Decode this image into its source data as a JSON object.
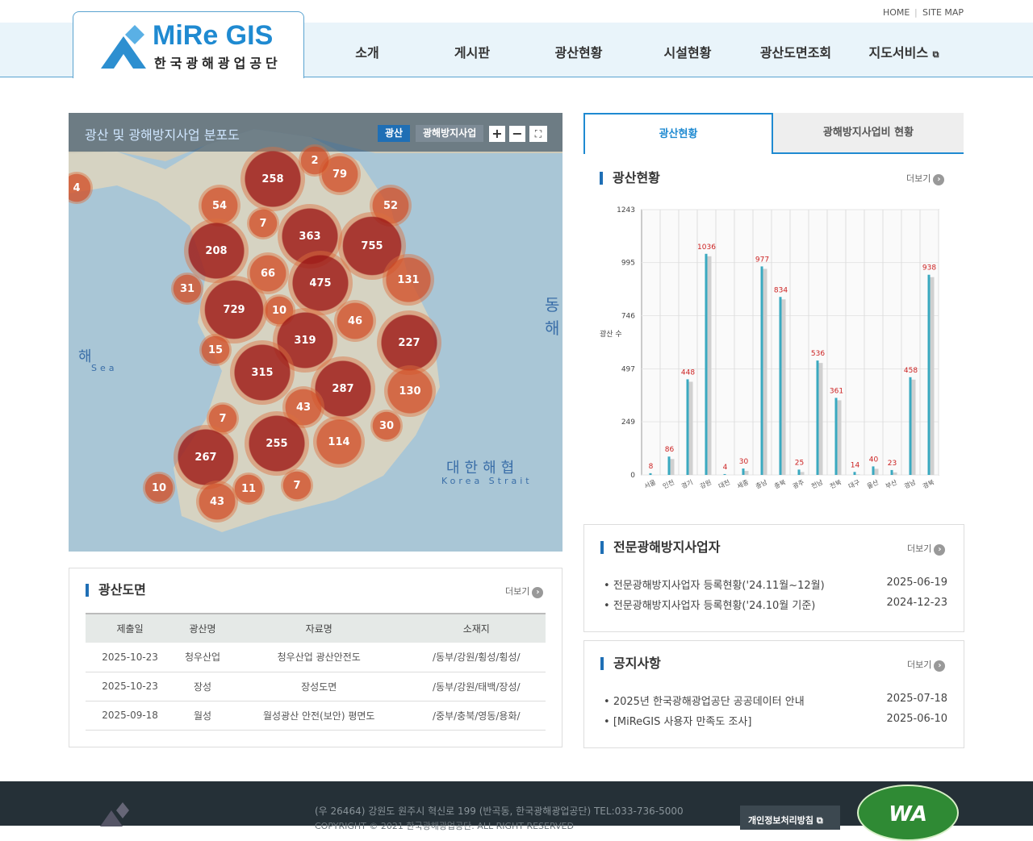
{
  "header": {
    "utility": [
      "HOME",
      "SITE MAP"
    ],
    "logo_text": "MiRe GIS",
    "logo_sub": "한국광해광업공단",
    "nav": [
      "소개",
      "게시판",
      "광산현황",
      "시설현황",
      "광산도면조회",
      "지도서비스"
    ]
  },
  "map": {
    "title": "광산 및 광해방지사업 분포도",
    "buttons": [
      "광산",
      "광해방지사업"
    ],
    "zoom_in": "+",
    "zoom_out": "−",
    "sea_labels": [
      "동해",
      "대한해협",
      "Korea Strait",
      "해",
      "Sea"
    ],
    "clusters": [
      258,
      79,
      2,
      4,
      54,
      7,
      52,
      363,
      755,
      208,
      66,
      475,
      131,
      31,
      729,
      10,
      46,
      319,
      227,
      15,
      315,
      287,
      130,
      43,
      7,
      30,
      255,
      114,
      267,
      10,
      11,
      7,
      43
    ],
    "cluster_color": "#b22a1e"
  },
  "tabs": [
    "광산현황",
    "광해방지사업비 현황"
  ],
  "mines": {
    "title": "광산현황",
    "more": "더보기",
    "chart_data": {
      "type": "bar",
      "categories": [
        "서울",
        "인천",
        "경기",
        "강원",
        "대전",
        "세종",
        "충남",
        "충북",
        "광주",
        "전남",
        "전북",
        "대구",
        "울산",
        "부산",
        "경남",
        "경북"
      ],
      "values": [
        8,
        86,
        448,
        1036,
        4,
        30,
        977,
        834,
        25,
        536,
        361,
        14,
        40,
        23,
        458,
        938
      ],
      "ylabel": "광산 수",
      "yticks": [
        0,
        249,
        497,
        746,
        995,
        1243
      ],
      "ylim": [
        0,
        1243
      ],
      "grid": true,
      "bar_color": "#3aa9c0",
      "label_color": "#cc2222"
    }
  },
  "drawings": {
    "title": "광산도면",
    "more": "더보기",
    "columns": [
      "제출일",
      "광산명",
      "자료명",
      "소재지"
    ],
    "rows": [
      [
        "2025-10-23",
        "청우산업",
        "청우산업 광산안전도",
        "/동부/강원/횡성/횡성/"
      ],
      [
        "2025-10-23",
        "장성",
        "장성도면",
        "/동부/강원/태백/장성/"
      ],
      [
        "2025-09-18",
        "월성",
        "월성광산 안전(보안) 평면도",
        "/중부/충북/영동/용화/"
      ]
    ]
  },
  "contractors": {
    "title": "전문광해방지사업자",
    "more": "더보기",
    "items": [
      {
        "text": "전문광해방지사업자 등록현황('24.11월~12월)",
        "date": "2025-06-19"
      },
      {
        "text": "전문광해방지사업자 등록현황('24.10월 기준)",
        "date": "2024-12-23"
      }
    ]
  },
  "notices": {
    "title": "공지사항",
    "more": "더보기",
    "items": [
      {
        "text": "2025년 한국광해광업공단 공공데이터 안내",
        "date": "2025-07-18"
      },
      {
        "text": "[MiReGIS 사용자 만족도 조사]",
        "date": "2025-06-10"
      }
    ]
  },
  "footer": {
    "address": "(우 26464) 강원도 원주시 혁신로 199 (반곡동, 한국광해광업공단) TEL:033-736-5000",
    "copyright": "COPYRIGHT © 2021 한국광해광업공단. ALL RIGHT RESERVED",
    "privacy": "개인정보처리방침",
    "badge": "WA"
  }
}
